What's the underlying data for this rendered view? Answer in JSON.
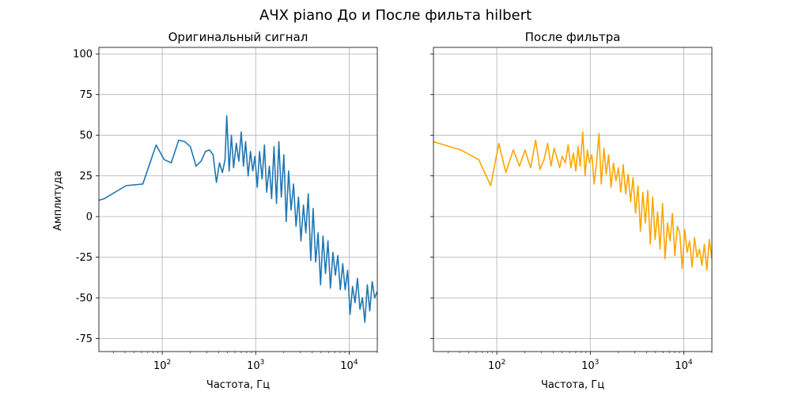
{
  "figure": {
    "suptitle": "АЧХ piano До и После фильта hilbert"
  },
  "chart_data": [
    {
      "type": "line",
      "title": "Оригинальный сигнал",
      "xlabel": "Частота, Гц",
      "ylabel": "Амплитуда",
      "xscale": "log",
      "xlim": [
        21,
        20000
      ],
      "ylim": [
        -83,
        104
      ],
      "grid": true,
      "xticks": [
        {
          "value": 100,
          "base": "10",
          "exp": "2"
        },
        {
          "value": 1000,
          "base": "10",
          "exp": "3"
        },
        {
          "value": 10000,
          "base": "10",
          "exp": "4"
        }
      ],
      "yticks": [
        -75,
        -50,
        -25,
        0,
        25,
        50,
        75,
        100
      ],
      "series": [
        {
          "color": "#1f77b4",
          "x": [
            21,
            24,
            41,
            62,
            86,
            105,
            125,
            150,
            175,
            200,
            230,
            260,
            290,
            320,
            350,
            380,
            410,
            440,
            470,
            490,
            520,
            550,
            580,
            620,
            660,
            700,
            740,
            780,
            830,
            880,
            930,
            980,
            1040,
            1100,
            1170,
            1240,
            1310,
            1400,
            1480,
            1570,
            1670,
            1770,
            1880,
            2000,
            2120,
            2250,
            2390,
            2540,
            2700,
            2870,
            3050,
            3240,
            3440,
            3650,
            3880,
            4120,
            4380,
            4650,
            4940,
            5250,
            5580,
            5930,
            6300,
            6700,
            7120,
            7560,
            8030,
            8530,
            9060,
            9630,
            10230,
            10870,
            11550,
            12270,
            13040,
            13850,
            14720,
            15640,
            16610,
            17650,
            18750,
            20000
          ],
          "y": [
            10,
            11,
            19,
            20,
            44,
            35,
            33,
            47,
            46,
            43,
            31,
            34,
            40,
            41,
            38,
            21,
            33,
            27,
            35,
            62,
            28,
            50,
            30,
            45,
            34,
            52,
            31,
            46,
            25,
            40,
            28,
            37,
            18,
            40,
            23,
            44,
            15,
            31,
            11,
            43,
            8,
            46,
            12,
            38,
            -3,
            28,
            4,
            20,
            -6,
            12,
            -15,
            7,
            -10,
            14,
            -27,
            5,
            -28,
            -10,
            -42,
            -12,
            -35,
            -15,
            -44,
            -22,
            -36,
            -24,
            -45,
            -29,
            -45,
            -33,
            -60,
            -43,
            -53,
            -38,
            -57,
            -50,
            -65,
            -42,
            -58,
            -40,
            -50,
            -46
          ]
        }
      ]
    },
    {
      "type": "line",
      "title": "После фильтра",
      "xlabel": "Частота, Гц",
      "ylabel": "",
      "xscale": "log",
      "xlim": [
        21,
        20000
      ],
      "ylim": [
        -83,
        104
      ],
      "grid": true,
      "xticks": [
        {
          "value": 100,
          "base": "10",
          "exp": "2"
        },
        {
          "value": 1000,
          "base": "10",
          "exp": "3"
        },
        {
          "value": 10000,
          "base": "10",
          "exp": "4"
        }
      ],
      "yticks": [
        -75,
        -50,
        -25,
        0,
        25,
        50,
        75,
        100
      ],
      "series": [
        {
          "color": "#ffa500",
          "x": [
            21,
            41,
            64,
            86,
            105,
            125,
            150,
            175,
            200,
            230,
            260,
            290,
            320,
            350,
            380,
            410,
            440,
            470,
            500,
            540,
            580,
            620,
            660,
            700,
            740,
            780,
            830,
            880,
            930,
            980,
            1040,
            1100,
            1170,
            1240,
            1310,
            1400,
            1480,
            1570,
            1670,
            1770,
            1880,
            2000,
            2120,
            2250,
            2390,
            2540,
            2700,
            2870,
            3050,
            3240,
            3440,
            3650,
            3880,
            4120,
            4380,
            4650,
            4940,
            5250,
            5580,
            5930,
            6300,
            6700,
            7120,
            7560,
            8030,
            8530,
            9060,
            9630,
            10230,
            10870,
            11550,
            12270,
            13040,
            13850,
            14720,
            15640,
            16610,
            17650,
            18750,
            20000
          ],
          "y": [
            46,
            41,
            35,
            19,
            45,
            27,
            41,
            31,
            41,
            30,
            47,
            29,
            35,
            45,
            31,
            42,
            36,
            30,
            37,
            33,
            44,
            30,
            39,
            28,
            43,
            31,
            52,
            25,
            41,
            33,
            38,
            20,
            34,
            51,
            20,
            42,
            26,
            38,
            18,
            33,
            22,
            30,
            15,
            32,
            14,
            26,
            9,
            24,
            2,
            19,
            -9,
            15,
            -4,
            16,
            -17,
            12,
            -14,
            3,
            -20,
            8,
            -26,
            -4,
            -15,
            2,
            -24,
            -6,
            -10,
            -32,
            -8,
            -22,
            -15,
            -31,
            -13,
            -25,
            -20,
            -30,
            -17,
            -33,
            -14,
            -26
          ]
        }
      ]
    }
  ]
}
